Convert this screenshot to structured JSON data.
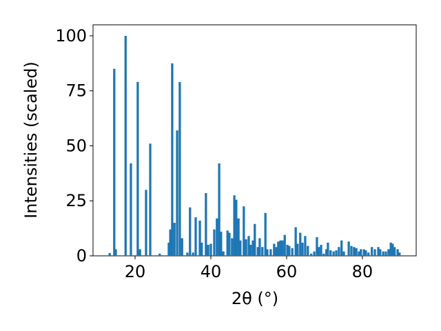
{
  "chart_data": {
    "type": "bar",
    "xlabel": "2θ (°)",
    "ylabel": "Intensities (scaled)",
    "color": "#1f77b4",
    "xlim": [
      8.9,
      94.2
    ],
    "ylim": [
      0,
      105
    ],
    "xticks": [
      20,
      40,
      60,
      80
    ],
    "yticks": [
      0,
      25,
      50,
      75,
      100
    ],
    "grid": false,
    "x": [
      13.3,
      14.5,
      14.9,
      17.5,
      18.9,
      20.7,
      21.3,
      22.9,
      24.0,
      26.5,
      28.9,
      29.3,
      29.8,
      30.4,
      31.1,
      31.8,
      32.4,
      33.8,
      34.5,
      35.3,
      36.0,
      37.1,
      37.6,
      38.7,
      39.3,
      40.0,
      40.9,
      41.6,
      42.2,
      42.7,
      43.3,
      44.4,
      44.9,
      45.6,
      46.2,
      46.7,
      47.3,
      47.8,
      48.7,
      49.3,
      50.0,
      50.5,
      51.1,
      51.6,
      52.4,
      52.9,
      53.6,
      54.4,
      54.9,
      55.8,
      56.7,
      57.3,
      57.8,
      58.4,
      58.9,
      59.5,
      60.2,
      60.7,
      61.5,
      62.4,
      62.9,
      63.6,
      64.2,
      64.9,
      65.6,
      66.5,
      67.3,
      68.0,
      68.5,
      69.1,
      69.8,
      70.5,
      70.9,
      71.6,
      72.4,
      73.1,
      73.8,
      74.5,
      75.1,
      76.4,
      77.1,
      77.8,
      78.4,
      79.1,
      79.6,
      80.4,
      80.9,
      81.6,
      82.5,
      83.3,
      84.2,
      84.7,
      85.5,
      86.2,
      86.9,
      87.5,
      88.0,
      88.5,
      89.3,
      89.8
    ],
    "values": [
      1.3,
      85,
      3,
      100,
      42,
      79,
      3,
      30,
      51,
      1,
      6,
      12,
      87.5,
      15,
      57,
      79,
      8,
      1.5,
      22,
      1.5,
      17.5,
      16,
      6,
      28.5,
      5,
      5.5,
      12,
      17,
      42,
      11,
      2,
      11.5,
      10.5,
      8,
      27.5,
      25.5,
      17,
      7,
      22.5,
      7.5,
      9,
      5,
      7,
      14.5,
      4,
      8,
      4,
      19.5,
      3,
      3,
      5.5,
      4,
      6.5,
      7,
      7,
      9.5,
      5,
      4.5,
      3.5,
      13,
      5.5,
      10.5,
      6,
      9,
      4.5,
      1,
      2,
      8.5,
      4,
      5,
      1,
      3,
      6,
      2.5,
      2,
      2.5,
      4,
      7,
      2,
      6.5,
      4.5,
      4,
      3.5,
      2,
      3,
      3,
      2.5,
      1.5,
      4,
      3,
      4,
      3,
      2,
      2,
      3,
      6,
      5.5,
      4,
      3,
      1.5
    ]
  }
}
